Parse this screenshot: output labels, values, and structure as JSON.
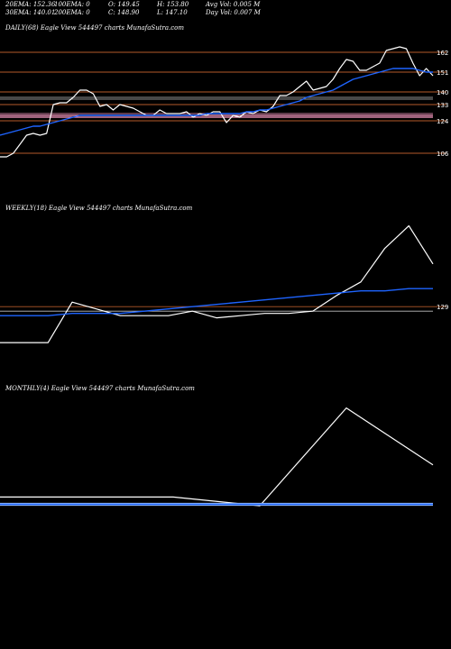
{
  "header": {
    "row1": [
      "20EMA: 152.36",
      "100EMA: 0",
      "O: 149.45",
      "H: 153.80",
      "Avg Vol: 0.005 M"
    ],
    "row2": [
      "30EMA: 140.01",
      "200EMA: 0",
      "C: 148.90",
      "L: 147.10",
      "Day Vol: 0.007 M"
    ]
  },
  "colors": {
    "price": "#ffffff",
    "ema": "#1e64ff",
    "level": "#b45a2a",
    "support": "#ff9ec8",
    "grey": "#bfbfbf"
  },
  "chart_data": [
    {
      "type": "line",
      "title": "DAILY(68) Eagle  View  544497 charts MunafaSutra.com",
      "ylim": [
        96,
        172
      ],
      "levels": [
        162,
        151,
        140,
        133,
        124,
        106
      ],
      "level_labels": [
        "162",
        "151",
        "140",
        "133",
        "124",
        "106"
      ],
      "series": [
        {
          "values": [
            104,
            104,
            106,
            111,
            116,
            117,
            116,
            117,
            133,
            134,
            134,
            137,
            141,
            141,
            139,
            132,
            133,
            130,
            133,
            132,
            131,
            129,
            127,
            127,
            130,
            128,
            128,
            128,
            129,
            126,
            128,
            127,
            129,
            129,
            123,
            127,
            126,
            129,
            128,
            130,
            129,
            132,
            138,
            138,
            140,
            143,
            146,
            141,
            142,
            143,
            147,
            153,
            158,
            157,
            152,
            152,
            154,
            156,
            163,
            164,
            165,
            164,
            156,
            149,
            153,
            149
          ]
        },
        {
          "values": [
            116,
            117,
            118,
            119,
            120,
            121,
            121,
            122,
            123,
            124,
            125,
            126,
            127,
            127,
            127,
            127,
            127,
            127,
            127,
            127,
            127,
            127,
            127,
            127,
            127,
            127,
            127,
            127,
            127,
            127,
            127,
            128,
            128,
            128,
            128,
            128,
            128,
            129,
            129,
            130,
            130,
            131,
            132,
            133,
            134,
            135,
            137,
            138,
            139,
            140,
            141,
            143,
            145,
            147,
            148,
            149,
            150,
            151,
            152,
            153,
            153,
            153,
            153,
            152,
            151,
            151
          ]
        }
      ]
    },
    {
      "type": "line",
      "title": "WEEKLY(18) Eagle  View  544497 charts MunafaSutra.com",
      "ylim": [
        105,
        170
      ],
      "levels": [
        129
      ],
      "level_labels": [
        "129"
      ],
      "series": [
        {
          "values": [
            113,
            113,
            113,
            131,
            128,
            125,
            125,
            125,
            127,
            124,
            125,
            126,
            126,
            127,
            134,
            140,
            155,
            165,
            148
          ]
        },
        {
          "values": [
            125,
            125,
            125,
            126,
            126,
            126,
            127,
            128,
            129,
            130,
            131,
            132,
            133,
            134,
            135,
            136,
            136,
            137,
            137
          ]
        }
      ]
    },
    {
      "type": "line",
      "title": "MONTHLY(4) Eagle  View  544497 charts MunafaSutra.com",
      "ylim": [
        100,
        200
      ],
      "levels": [],
      "level_labels": [],
      "series": [
        {
          "values": [
            130,
            130,
            130,
            124,
            191,
            152
          ]
        },
        {
          "values": [
            125,
            125,
            125,
            125,
            125,
            125
          ]
        }
      ]
    }
  ]
}
